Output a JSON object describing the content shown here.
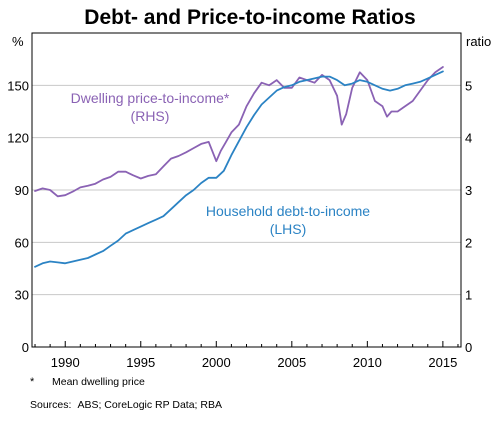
{
  "chart_data": {
    "type": "line",
    "title": "Debt- and Price-to-income Ratios",
    "y_left_unit": "%",
    "y_right_unit": "ratio",
    "ylim_left": [
      0,
      180
    ],
    "ylim_right": [
      0,
      6
    ],
    "xlim": [
      1987.8,
      2016.2
    ],
    "y_left_ticks": [
      "0",
      "30",
      "60",
      "90",
      "120",
      "150"
    ],
    "y_left_tick_values": [
      0,
      30,
      60,
      90,
      120,
      150
    ],
    "y_right_ticks": [
      "0",
      "1",
      "2",
      "3",
      "4",
      "5"
    ],
    "y_right_tick_values": [
      0,
      1,
      2,
      3,
      4,
      5
    ],
    "x_ticks": [
      "1990",
      "1995",
      "2000",
      "2005",
      "2010",
      "2015"
    ],
    "x_tick_values": [
      1990,
      1995,
      2000,
      2005,
      2010,
      2015
    ],
    "grid": "horizontal",
    "series": [
      {
        "name": "Dwelling price-to-income*",
        "label_line2": "(RHS)",
        "axis": "right",
        "color": "#8a62b4",
        "x": [
          1988.0,
          1988.5,
          1989.0,
          1989.5,
          1990.0,
          1990.5,
          1991.0,
          1991.5,
          1992.0,
          1992.5,
          1993.0,
          1993.5,
          1994.0,
          1994.5,
          1995.0,
          1995.5,
          1996.0,
          1996.5,
          1997.0,
          1997.5,
          1998.0,
          1998.5,
          1999.0,
          1999.5,
          2000.0,
          2000.3,
          2000.6,
          2001.0,
          2001.5,
          2002.0,
          2002.5,
          2003.0,
          2003.5,
          2004.0,
          2004.5,
          2005.0,
          2005.5,
          2006.0,
          2006.5,
          2007.0,
          2007.5,
          2008.0,
          2008.3,
          2008.6,
          2009.0,
          2009.5,
          2010.0,
          2010.5,
          2011.0,
          2011.3,
          2011.6,
          2012.0,
          2012.5,
          2013.0,
          2013.5,
          2014.0,
          2014.5,
          2015.0
        ],
        "values": [
          2.98,
          3.03,
          3.0,
          2.88,
          2.9,
          2.97,
          3.05,
          3.08,
          3.12,
          3.2,
          3.25,
          3.35,
          3.35,
          3.28,
          3.22,
          3.27,
          3.3,
          3.45,
          3.6,
          3.65,
          3.72,
          3.8,
          3.88,
          3.92,
          3.55,
          3.75,
          3.9,
          4.1,
          4.25,
          4.6,
          4.85,
          5.05,
          5.0,
          5.1,
          4.95,
          4.95,
          5.15,
          5.1,
          5.05,
          5.2,
          5.1,
          4.8,
          4.25,
          4.45,
          4.95,
          5.25,
          5.1,
          4.7,
          4.6,
          4.4,
          4.5,
          4.5,
          4.6,
          4.7,
          4.9,
          5.1,
          5.25,
          5.35
        ]
      },
      {
        "name": "Household debt-to-income",
        "label_line2": "(LHS)",
        "axis": "left",
        "color": "#2b83c4",
        "x": [
          1988.0,
          1988.5,
          1989.0,
          1989.5,
          1990.0,
          1990.5,
          1991.0,
          1991.5,
          1992.0,
          1992.5,
          1993.0,
          1993.5,
          1994.0,
          1994.5,
          1995.0,
          1995.5,
          1996.0,
          1996.5,
          1997.0,
          1997.5,
          1998.0,
          1998.5,
          1999.0,
          1999.5,
          2000.0,
          2000.5,
          2001.0,
          2001.5,
          2002.0,
          2002.5,
          2003.0,
          2003.5,
          2004.0,
          2004.5,
          2005.0,
          2005.5,
          2006.0,
          2006.5,
          2007.0,
          2007.5,
          2008.0,
          2008.5,
          2009.0,
          2009.5,
          2010.0,
          2010.5,
          2011.0,
          2011.5,
          2012.0,
          2012.5,
          2013.0,
          2013.5,
          2014.0,
          2014.5,
          2015.0
        ],
        "values": [
          46,
          48,
          49,
          48.5,
          48,
          49,
          50,
          51,
          53,
          55,
          58,
          61,
          65,
          67,
          69,
          71,
          73,
          75,
          79,
          83,
          87,
          90,
          94,
          97,
          97,
          101,
          110,
          118,
          126,
          133,
          139,
          143,
          147,
          149,
          150,
          152,
          153,
          154,
          155,
          155,
          153,
          150,
          151,
          153,
          152,
          150,
          148,
          147,
          148,
          150,
          151,
          152,
          154,
          156,
          158
        ]
      }
    ]
  },
  "footnotes": {
    "marker": "*",
    "mean_price_note": "Mean dwelling price",
    "sources_label": "Sources:",
    "sources_text": "ABS; CoreLogic RP Data; RBA"
  }
}
